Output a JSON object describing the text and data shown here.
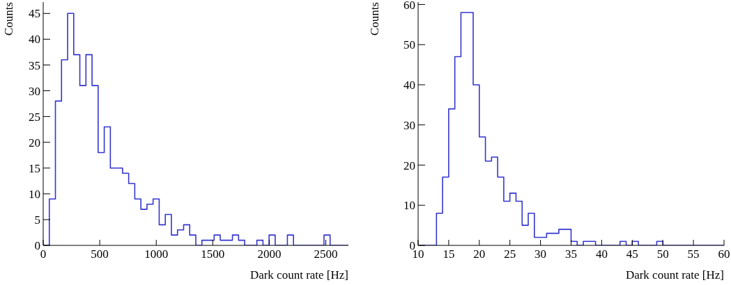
{
  "chart_data": [
    {
      "type": "histogram",
      "xlabel": "Dark count rate [Hz]",
      "ylabel": "Counts",
      "color": "#3535d0",
      "grid": false,
      "legend": false,
      "bins": [
        0,
        54,
        108,
        162,
        216,
        270,
        324,
        378,
        432,
        486,
        540,
        594,
        648,
        702,
        756,
        810,
        864,
        918,
        972,
        1026,
        1080,
        1134,
        1188,
        1242,
        1296,
        1350,
        1404,
        1458,
        1512,
        1566,
        1620,
        1674,
        1728,
        1782,
        1836,
        1890,
        1944,
        1998,
        2052,
        2106,
        2160,
        2214,
        2268,
        2322,
        2376,
        2430,
        2484,
        2538,
        2592,
        2646,
        2700
      ],
      "values": [
        0,
        9,
        28,
        36,
        45,
        37,
        31,
        37,
        31,
        18,
        23,
        15,
        15,
        14,
        12,
        9,
        7,
        8,
        9,
        4,
        6,
        2,
        3,
        4,
        2,
        0,
        1,
        1,
        2,
        1,
        1,
        2,
        1,
        0,
        0,
        1,
        0,
        2,
        0,
        0,
        2,
        0,
        0,
        0,
        0,
        0,
        2,
        0,
        0,
        0
      ],
      "xlim": [
        0,
        2700
      ],
      "xticks": [
        0,
        500,
        1000,
        1500,
        2000,
        2500
      ],
      "ylim": [
        0,
        47.2
      ],
      "yticks": [
        0,
        5,
        10,
        15,
        20,
        25,
        30,
        35,
        40,
        45
      ]
    },
    {
      "type": "histogram",
      "xlabel": "Dark count rate [Hz]",
      "ylabel": "Counts",
      "color": "#3535d0",
      "grid": false,
      "legend": false,
      "bins": [
        10,
        11,
        12,
        13,
        14,
        15,
        16,
        17,
        18,
        19,
        20,
        21,
        22,
        23,
        24,
        25,
        26,
        27,
        28,
        29,
        30,
        31,
        32,
        33,
        34,
        35,
        36,
        37,
        38,
        39,
        40,
        41,
        42,
        43,
        44,
        45,
        46,
        47,
        48,
        49,
        50,
        51,
        52,
        53,
        54,
        55,
        56,
        57,
        58,
        59,
        60
      ],
      "values": [
        0,
        0,
        0,
        8,
        17,
        34,
        47,
        58,
        58,
        40,
        27,
        21,
        22,
        17,
        11,
        13,
        11,
        5,
        8,
        2,
        2,
        3,
        3,
        4,
        4,
        1,
        0,
        1,
        1,
        0,
        0,
        0,
        0,
        1,
        0,
        1,
        0,
        0,
        0,
        1,
        0,
        0,
        0,
        0,
        0,
        0,
        0,
        0,
        0,
        0
      ],
      "xlim": [
        10,
        60
      ],
      "xticks": [
        10,
        15,
        20,
        25,
        30,
        35,
        40,
        45,
        50,
        55,
        60
      ],
      "ylim": [
        0,
        60.6
      ],
      "yticks": [
        0,
        10,
        20,
        30,
        40,
        50,
        60
      ]
    }
  ]
}
